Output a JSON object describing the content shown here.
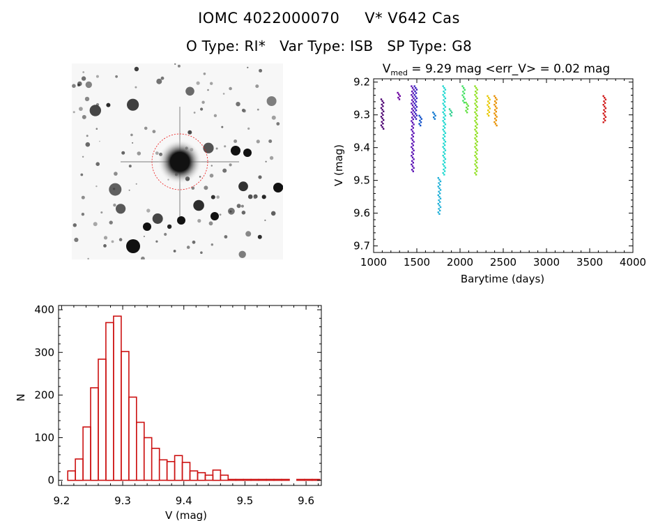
{
  "header": {
    "id_label": "IOMC 4022000070",
    "name_label": "V* V642 Cas",
    "o_type_text": "O Type: RI*",
    "var_type_text": "Var Type: ISB",
    "sp_type_text": "SP Type: G8"
  },
  "finder_chart": {
    "description": "DSS-style finder image, target circled"
  },
  "chart_data": [
    {
      "type": "scatter",
      "title_prefix": "V",
      "title_sub": "med",
      "title_rest": " = 9.29 mag <err_V> = 0.02 mag",
      "xlabel": "Barytime (days)",
      "ylabel": "V (mag)",
      "xlim": [
        1000,
        4000
      ],
      "ylim": [
        9.72,
        9.19
      ],
      "xticks": [
        1000,
        1500,
        2000,
        2500,
        3000,
        3500,
        4000
      ],
      "yticks": [
        9.2,
        9.3,
        9.4,
        9.5,
        9.6,
        9.7
      ],
      "xtick_labels": [
        "1000",
        "1500",
        "2000",
        "2500",
        "3000",
        "3500",
        "4000"
      ],
      "ytick_labels": [
        "9.2",
        "9.3",
        "9.4",
        "9.5",
        "9.6",
        "9.7"
      ],
      "series": [
        {
          "x": 1100,
          "ymin": 9.25,
          "ymax": 9.34,
          "color": "#4b0070"
        },
        {
          "x": 1290,
          "ymin": 9.23,
          "ymax": 9.25,
          "color": "#6a00a0"
        },
        {
          "x": 1450,
          "ymin": 9.21,
          "ymax": 9.47,
          "color": "#5a10b4"
        },
        {
          "x": 1485,
          "ymin": 9.21,
          "ymax": 9.31,
          "color": "#3a20c0"
        },
        {
          "x": 1540,
          "ymin": 9.3,
          "ymax": 9.33,
          "color": "#1050c8"
        },
        {
          "x": 1700,
          "ymin": 9.29,
          "ymax": 9.31,
          "color": "#1078d0"
        },
        {
          "x": 1760,
          "ymin": 9.49,
          "ymax": 9.6,
          "color": "#20b0d8"
        },
        {
          "x": 1815,
          "ymin": 9.21,
          "ymax": 9.48,
          "color": "#20d8d0"
        },
        {
          "x": 1890,
          "ymin": 9.28,
          "ymax": 9.3,
          "color": "#30d090"
        },
        {
          "x": 2040,
          "ymin": 9.21,
          "ymax": 9.26,
          "color": "#40e060"
        },
        {
          "x": 2080,
          "ymin": 9.26,
          "ymax": 9.29,
          "color": "#60e040"
        },
        {
          "x": 2185,
          "ymin": 9.21,
          "ymax": 9.48,
          "color": "#90e020"
        },
        {
          "x": 2330,
          "ymin": 9.24,
          "ymax": 9.3,
          "color": "#e8c800"
        },
        {
          "x": 2410,
          "ymin": 9.24,
          "ymax": 9.33,
          "color": "#e89000"
        },
        {
          "x": 3670,
          "ymin": 9.24,
          "ymax": 9.32,
          "color": "#d01818"
        }
      ]
    },
    {
      "type": "bar",
      "xlabel": "V (mag)",
      "ylabel": "N",
      "xlim": [
        9.195,
        9.625
      ],
      "ylim": [
        -12,
        410
      ],
      "xticks": [
        9.2,
        9.3,
        9.4,
        9.5,
        9.6
      ],
      "yticks": [
        0,
        100,
        200,
        300,
        400
      ],
      "xtick_labels": [
        "9.2",
        "9.3",
        "9.4",
        "9.5",
        "9.6"
      ],
      "ytick_labels": [
        "0",
        "100",
        "200",
        "300",
        "400"
      ],
      "bin_start": 9.21,
      "bin_width": 0.0125,
      "values": [
        22,
        50,
        125,
        217,
        284,
        370,
        385,
        302,
        195,
        136,
        100,
        75,
        48,
        44,
        58,
        42,
        22,
        18,
        12,
        24,
        12,
        2,
        2,
        2,
        2,
        2,
        2,
        2,
        2,
        0,
        2,
        2,
        2
      ],
      "bar_color": "#cc1111"
    }
  ]
}
